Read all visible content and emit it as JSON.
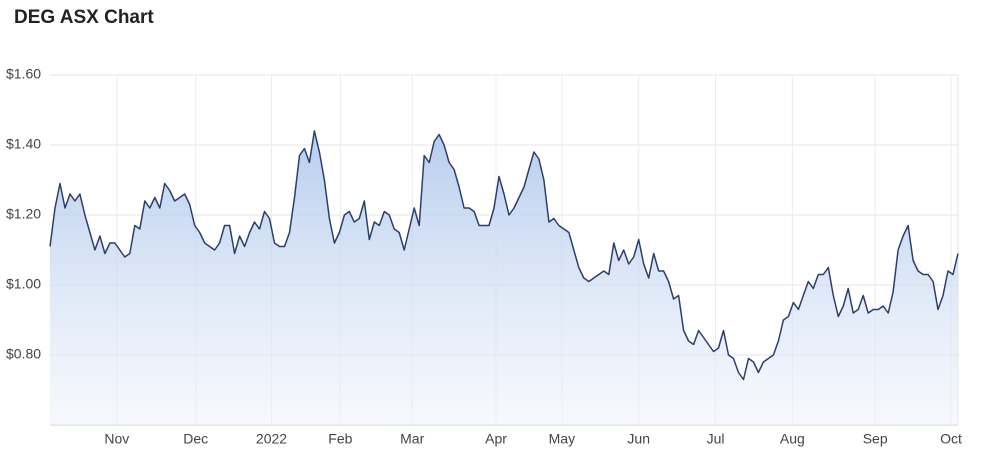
{
  "chart_data": {
    "type": "area",
    "title": "DEG ASX Chart",
    "color": "#2d3e6e",
    "grid": true,
    "xlim": [
      0,
      182
    ],
    "ylim": [
      0.6,
      1.6
    ],
    "yticks": [
      {
        "value": 0.8,
        "label": "$0.80"
      },
      {
        "value": 1.0,
        "label": "$1.00"
      },
      {
        "value": 1.2,
        "label": "$1.20"
      },
      {
        "value": 1.4,
        "label": "$1.40"
      },
      {
        "value": 1.6,
        "label": "$1.60"
      }
    ],
    "xticks": [
      {
        "value": 13.4,
        "label": "Nov"
      },
      {
        "value": 29.2,
        "label": "Dec"
      },
      {
        "value": 44.4,
        "label": "2022"
      },
      {
        "value": 58.2,
        "label": "Feb"
      },
      {
        "value": 72.6,
        "label": "Mar"
      },
      {
        "value": 89.4,
        "label": "Apr"
      },
      {
        "value": 102.6,
        "label": "May"
      },
      {
        "value": 118,
        "label": "Jun"
      },
      {
        "value": 133.4,
        "label": "Jul"
      },
      {
        "value": 148.8,
        "label": "Aug"
      },
      {
        "value": 165.4,
        "label": "Sep"
      },
      {
        "value": 180.6,
        "label": "Oct"
      }
    ],
    "values": [
      1.11,
      1.22,
      1.29,
      1.22,
      1.26,
      1.24,
      1.26,
      1.2,
      1.15,
      1.1,
      1.14,
      1.09,
      1.12,
      1.12,
      1.1,
      1.08,
      1.09,
      1.17,
      1.16,
      1.24,
      1.22,
      1.25,
      1.22,
      1.29,
      1.27,
      1.24,
      1.25,
      1.26,
      1.23,
      1.17,
      1.15,
      1.12,
      1.11,
      1.1,
      1.12,
      1.17,
      1.17,
      1.09,
      1.14,
      1.11,
      1.15,
      1.18,
      1.16,
      1.21,
      1.19,
      1.12,
      1.11,
      1.11,
      1.15,
      1.25,
      1.37,
      1.39,
      1.35,
      1.44,
      1.38,
      1.3,
      1.19,
      1.12,
      1.15,
      1.2,
      1.21,
      1.18,
      1.19,
      1.24,
      1.13,
      1.18,
      1.17,
      1.21,
      1.2,
      1.16,
      1.15,
      1.1,
      1.16,
      1.22,
      1.17,
      1.37,
      1.35,
      1.41,
      1.43,
      1.4,
      1.35,
      1.33,
      1.28,
      1.22,
      1.22,
      1.21,
      1.17,
      1.17,
      1.17,
      1.22,
      1.31,
      1.26,
      1.2,
      1.22,
      1.25,
      1.28,
      1.33,
      1.38,
      1.36,
      1.3,
      1.18,
      1.19,
      1.17,
      1.16,
      1.15,
      1.1,
      1.05,
      1.02,
      1.01,
      1.02,
      1.03,
      1.04,
      1.03,
      1.12,
      1.07,
      1.1,
      1.06,
      1.08,
      1.13,
      1.06,
      1.02,
      1.09,
      1.04,
      1.04,
      1.01,
      0.96,
      0.97,
      0.87,
      0.84,
      0.83,
      0.87,
      0.85,
      0.83,
      0.81,
      0.82,
      0.87,
      0.8,
      0.79,
      0.75,
      0.73,
      0.79,
      0.78,
      0.75,
      0.78,
      0.79,
      0.8,
      0.84,
      0.9,
      0.91,
      0.95,
      0.93,
      0.97,
      1.01,
      0.99,
      1.03,
      1.03,
      1.05,
      0.97,
      0.91,
      0.94,
      0.99,
      0.92,
      0.93,
      0.97,
      0.92,
      0.93,
      0.93,
      0.94,
      0.92,
      0.98,
      1.1,
      1.14,
      1.17,
      1.07,
      1.04,
      1.03,
      1.03,
      1.01,
      0.93,
      0.97,
      1.04,
      1.03,
      1.09
    ]
  }
}
